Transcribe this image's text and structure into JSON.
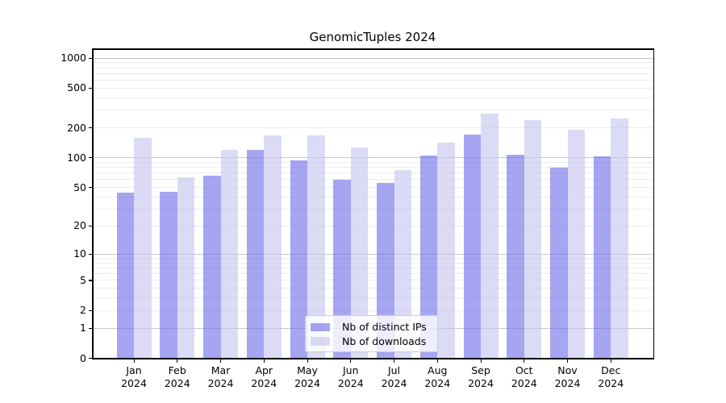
{
  "figure": {
    "background": "#ffffff"
  },
  "chart_data": {
    "type": "bar",
    "title": "GenomicTuples 2024",
    "x_categories": [
      "Jan",
      "Feb",
      "Mar",
      "Apr",
      "May",
      "Jun",
      "Jul",
      "Aug",
      "Sep",
      "Oct",
      "Nov",
      "Dec"
    ],
    "x_sublabel": "2024",
    "series": [
      {
        "name": "Nb of distinct IPs",
        "color": "#a5a5f1",
        "fill_rgba": "rgba(100,100,232,0.58)",
        "values": [
          44,
          45,
          66,
          119,
          94,
          60,
          56,
          105,
          172,
          108,
          80,
          103
        ]
      },
      {
        "name": "Nb of downloads",
        "color": "#dbdbf6",
        "fill_rgba": "rgba(193,193,240,0.58)",
        "values": [
          160,
          63,
          119,
          168,
          168,
          128,
          75,
          142,
          278,
          238,
          192,
          250
        ]
      }
    ],
    "y_scale": "log1p",
    "ylim": [
      0,
      1230
    ],
    "y_ticks": [
      0,
      1,
      2,
      5,
      10,
      20,
      50,
      100,
      200,
      500,
      1000
    ],
    "grid_major": [
      1,
      10,
      100,
      1000
    ],
    "grid_minor": [
      2,
      3,
      4,
      5,
      6,
      7,
      8,
      9,
      20,
      30,
      40,
      50,
      60,
      70,
      80,
      90,
      200,
      300,
      400,
      500,
      600,
      700,
      800,
      900
    ],
    "grid_major_color": "#c8c8c8",
    "grid_minor_color": "#ededed",
    "legend_position": "lower center",
    "grid": true
  }
}
